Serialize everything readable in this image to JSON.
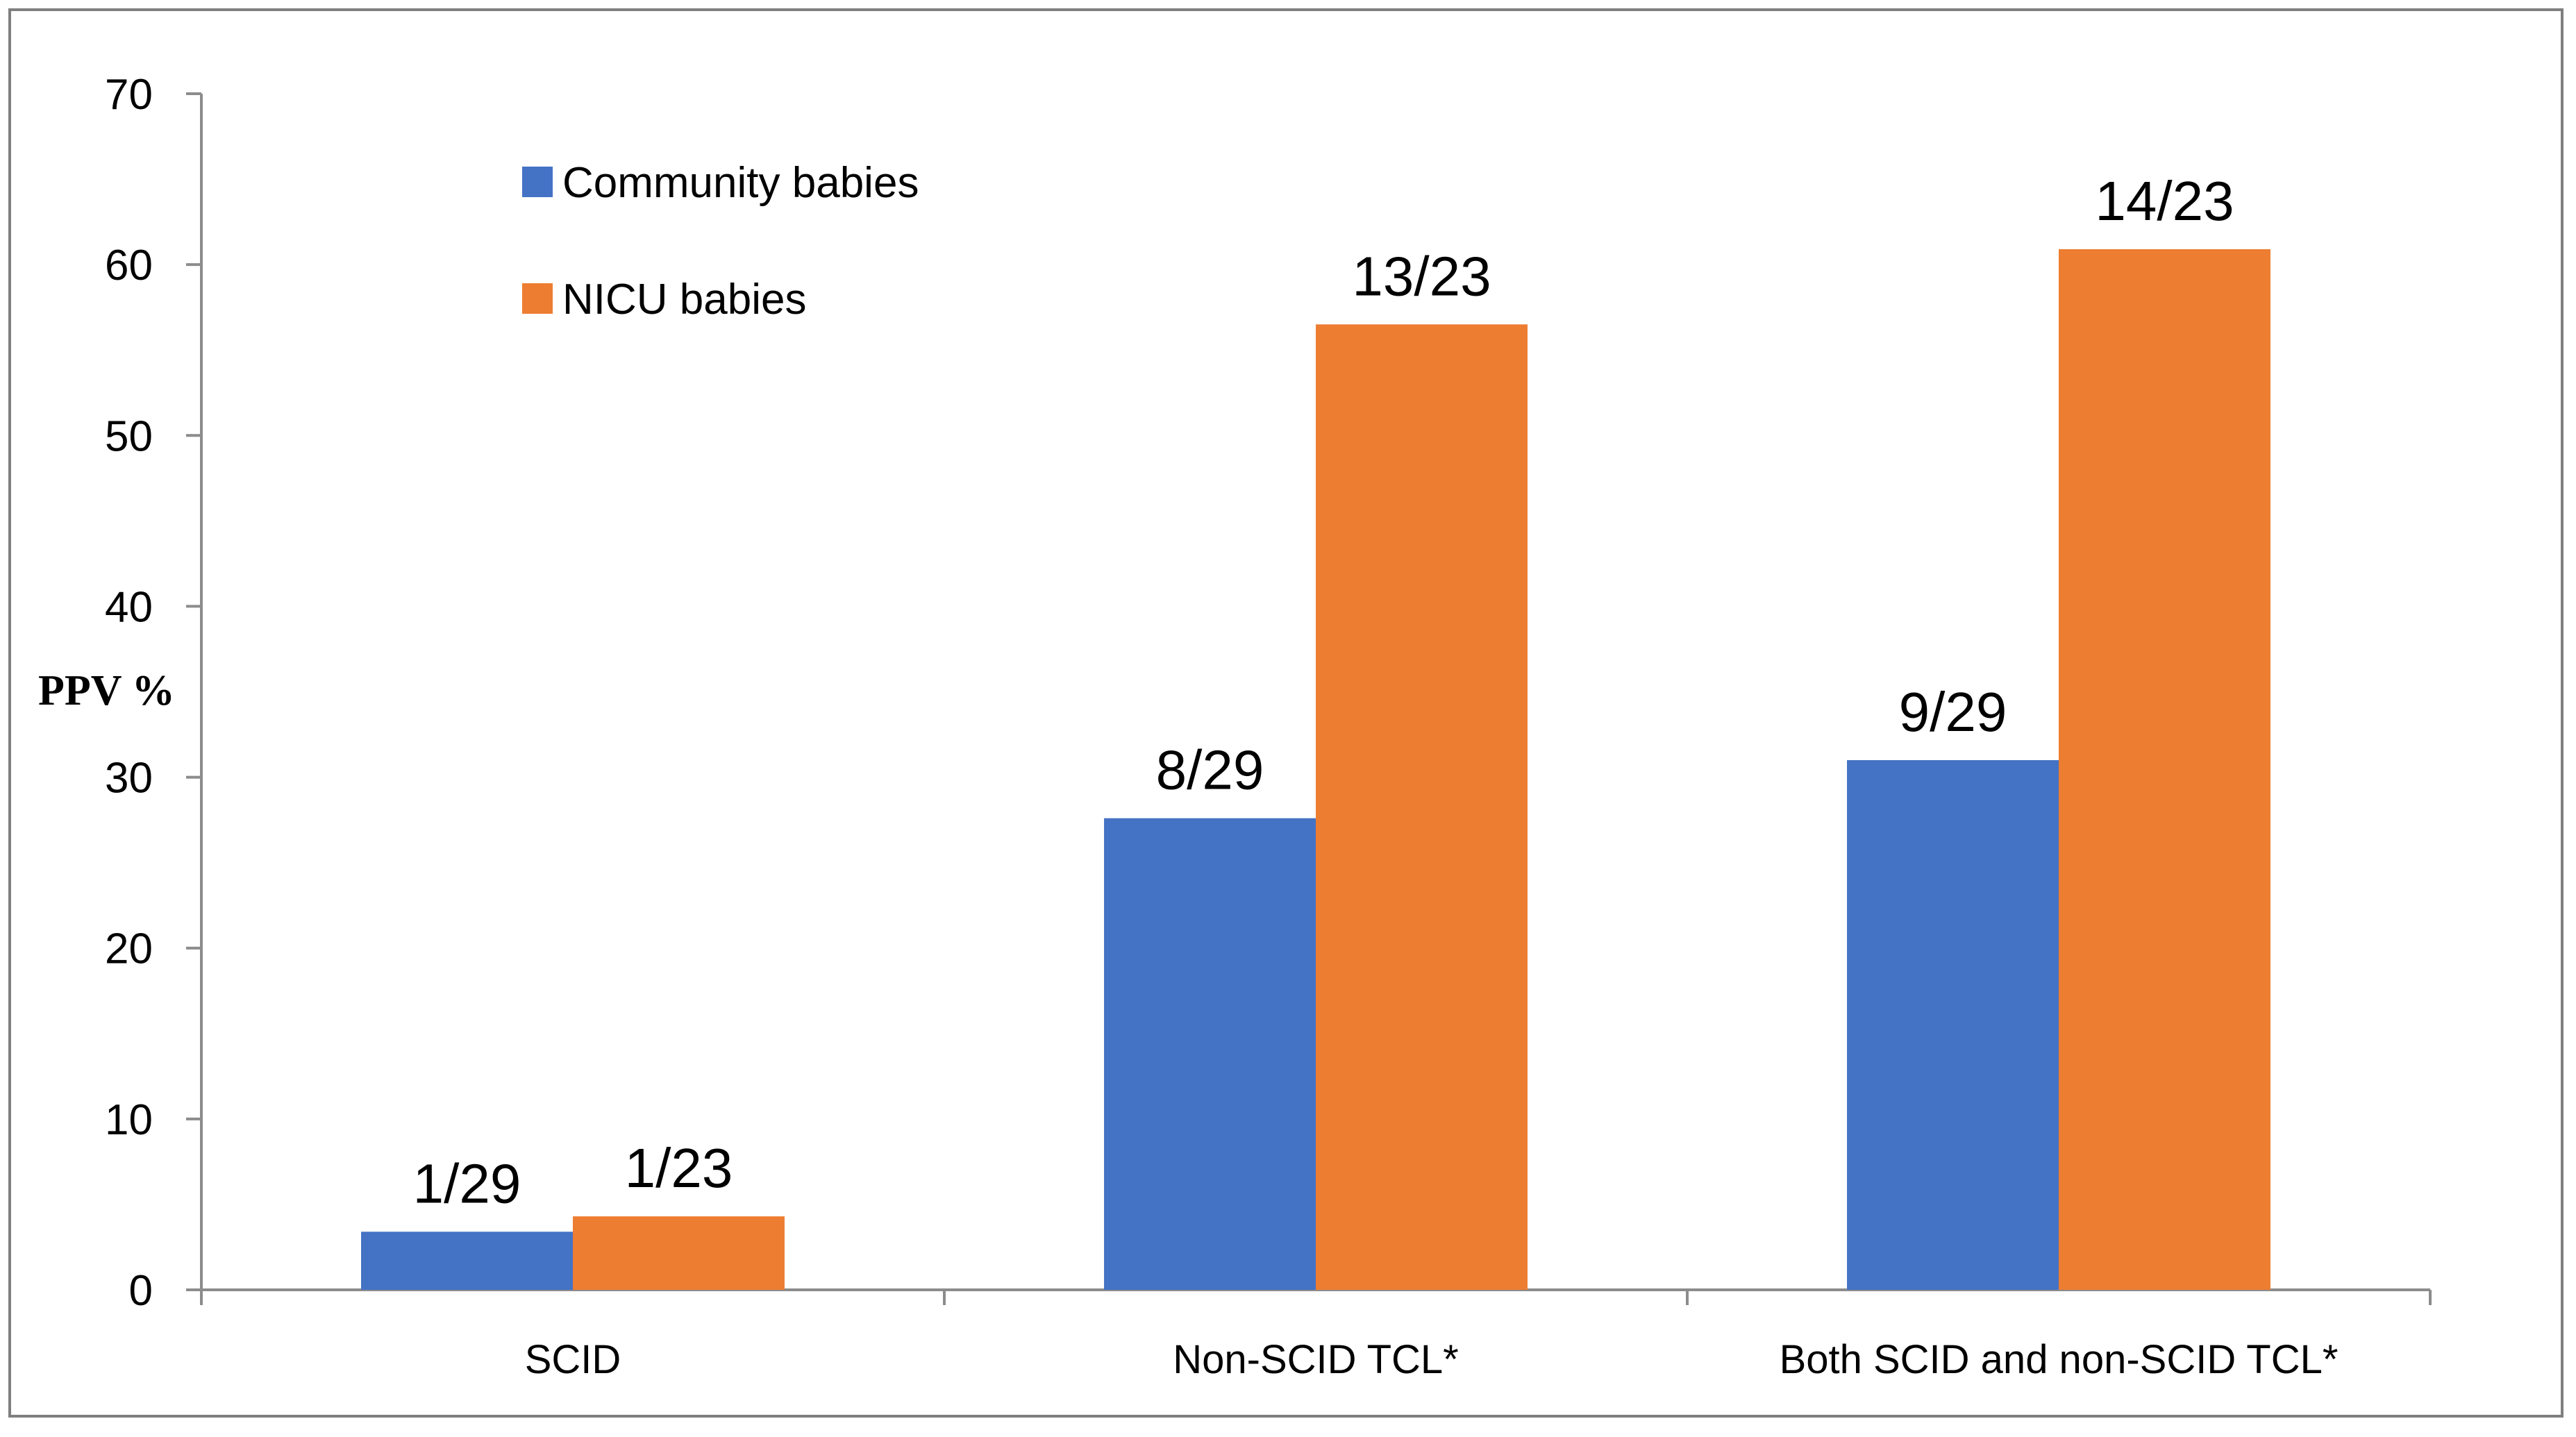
{
  "chart_data": {
    "type": "bar",
    "title": "",
    "xlabel": "",
    "ylabel": "PPV %",
    "ylim": [
      0,
      70
    ],
    "yticks": [
      0,
      10,
      20,
      30,
      40,
      50,
      60,
      70
    ],
    "grid": false,
    "legend_position": "top-left",
    "categories": [
      "SCID",
      "Non-SCID TCL*",
      "Both SCID and non-SCID TCL*"
    ],
    "series": [
      {
        "name": "Community babies",
        "color": "#4472c4",
        "values": [
          3.4,
          27.6,
          31.0
        ],
        "labels": [
          "1/29",
          "8/29",
          "9/29"
        ]
      },
      {
        "name": "NICU babies",
        "color": "#ed7d31",
        "values": [
          4.3,
          56.5,
          60.9
        ],
        "labels": [
          "1/23",
          "13/23",
          "14/23"
        ]
      }
    ]
  }
}
